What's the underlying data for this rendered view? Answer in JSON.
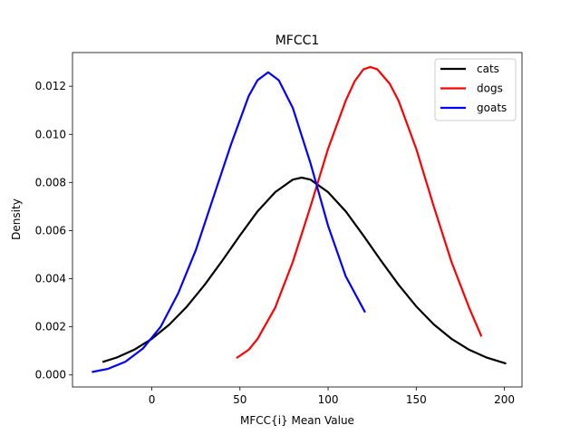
{
  "chart_data": {
    "type": "line",
    "title": "MFCC1",
    "xlabel": "MFCC{i} Mean Value",
    "ylabel": "Density",
    "xlim": [
      -45,
      210
    ],
    "ylim": [
      -0.0005,
      0.0134
    ],
    "xticks": [
      0,
      50,
      100,
      150,
      200
    ],
    "xtick_labels": [
      "0",
      "50",
      "100",
      "150",
      "200"
    ],
    "yticks": [
      0.0,
      0.002,
      0.004,
      0.006,
      0.008,
      0.01,
      0.012
    ],
    "ytick_labels": [
      "0.000",
      "0.002",
      "0.004",
      "0.006",
      "0.008",
      "0.010",
      "0.012"
    ],
    "grid": false,
    "legend_position": "top-right",
    "series": [
      {
        "name": "cats",
        "color": "#000000",
        "x": [
          -28,
          -20,
          -10,
          0,
          10,
          20,
          30,
          40,
          50,
          60,
          70,
          80,
          85,
          90,
          100,
          110,
          120,
          130,
          140,
          150,
          160,
          170,
          180,
          190,
          201
        ],
        "y": [
          0.00054,
          0.00072,
          0.00105,
          0.0015,
          0.0021,
          0.00285,
          0.00375,
          0.00475,
          0.0058,
          0.0068,
          0.0076,
          0.00812,
          0.0082,
          0.00812,
          0.0076,
          0.0068,
          0.0058,
          0.00475,
          0.00375,
          0.00285,
          0.0021,
          0.0015,
          0.00105,
          0.00072,
          0.00047
        ]
      },
      {
        "name": "dogs",
        "color": "#ff0000",
        "x": [
          48,
          55,
          60,
          70,
          80,
          90,
          100,
          110,
          115,
          120,
          124,
          128,
          135,
          140,
          150,
          160,
          170,
          180,
          187
        ],
        "y": [
          0.0007,
          0.00105,
          0.0015,
          0.0028,
          0.0047,
          0.007,
          0.0094,
          0.0114,
          0.0122,
          0.0127,
          0.0128,
          0.0127,
          0.0121,
          0.0114,
          0.0094,
          0.007,
          0.0047,
          0.0028,
          0.0016
        ]
      },
      {
        "name": "goats",
        "color": "#0000ff",
        "x": [
          -34,
          -25,
          -15,
          -5,
          5,
          15,
          25,
          35,
          45,
          55,
          60,
          66,
          72,
          80,
          90,
          100,
          110,
          121
        ],
        "y": [
          0.00012,
          0.00025,
          0.00055,
          0.0011,
          0.002,
          0.0034,
          0.0052,
          0.0074,
          0.0096,
          0.0116,
          0.01225,
          0.01258,
          0.01225,
          0.0111,
          0.0088,
          0.0062,
          0.0041,
          0.0026
        ]
      }
    ]
  }
}
